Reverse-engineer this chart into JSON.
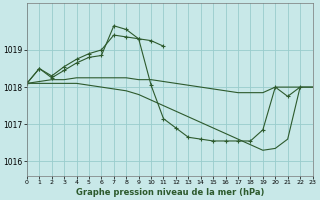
{
  "title": "Graphe pression niveau de la mer (hPa)",
  "bg": "#c8e8e8",
  "grid_color": "#99cccc",
  "lc": "#2d5a2d",
  "xlim": [
    0,
    23
  ],
  "ylim": [
    1015.6,
    1020.25
  ],
  "yticks": [
    1016,
    1017,
    1018,
    1019
  ],
  "xticks": [
    0,
    1,
    2,
    3,
    4,
    5,
    6,
    7,
    8,
    9,
    10,
    11,
    12,
    13,
    14,
    15,
    16,
    17,
    18,
    19,
    20,
    21,
    22,
    23
  ],
  "s1x": [
    0,
    1,
    2,
    3,
    4,
    5,
    6,
    7,
    8,
    9,
    10,
    11,
    12,
    13,
    14,
    15,
    16,
    17,
    18,
    19,
    20,
    21,
    22
  ],
  "s1y": [
    1018.1,
    1018.5,
    1018.25,
    1018.45,
    1018.65,
    1018.8,
    1018.85,
    1019.65,
    1019.55,
    1019.3,
    1018.05,
    1017.15,
    1016.9,
    1016.65,
    1016.6,
    1016.55,
    1016.55,
    1016.55,
    1016.55,
    1016.85,
    1018.0,
    1017.75,
    1018.0
  ],
  "s2x": [
    0,
    1,
    2,
    3,
    4,
    5,
    6,
    7,
    8,
    9,
    10,
    11
  ],
  "s2y": [
    1018.1,
    1018.5,
    1018.3,
    1018.55,
    1018.75,
    1018.9,
    1019.0,
    1019.4,
    1019.35,
    1019.3,
    1019.25,
    1019.1
  ],
  "s3x": [
    0,
    1,
    2,
    3,
    4,
    5,
    6,
    7,
    8,
    9,
    10,
    11,
    12,
    13,
    14,
    15,
    16,
    17,
    18,
    19,
    20,
    21,
    22,
    23
  ],
  "s3y": [
    1018.1,
    1018.15,
    1018.2,
    1018.2,
    1018.25,
    1018.25,
    1018.25,
    1018.25,
    1018.25,
    1018.2,
    1018.2,
    1018.15,
    1018.1,
    1018.05,
    1018.0,
    1017.95,
    1017.9,
    1017.85,
    1017.85,
    1017.85,
    1018.0,
    1018.0,
    1018.0,
    1018.0
  ],
  "s4x": [
    0,
    1,
    2,
    3,
    4,
    5,
    6,
    7,
    8,
    9,
    10,
    11,
    12,
    13,
    14,
    15,
    16,
    17,
    18,
    19,
    20,
    21,
    22,
    23
  ],
  "s4y": [
    1018.1,
    1018.1,
    1018.1,
    1018.1,
    1018.1,
    1018.05,
    1018.0,
    1017.95,
    1017.9,
    1017.8,
    1017.65,
    1017.5,
    1017.35,
    1017.2,
    1017.05,
    1016.9,
    1016.75,
    1016.6,
    1016.45,
    1016.3,
    1016.35,
    1016.6,
    1018.0,
    1018.0
  ]
}
